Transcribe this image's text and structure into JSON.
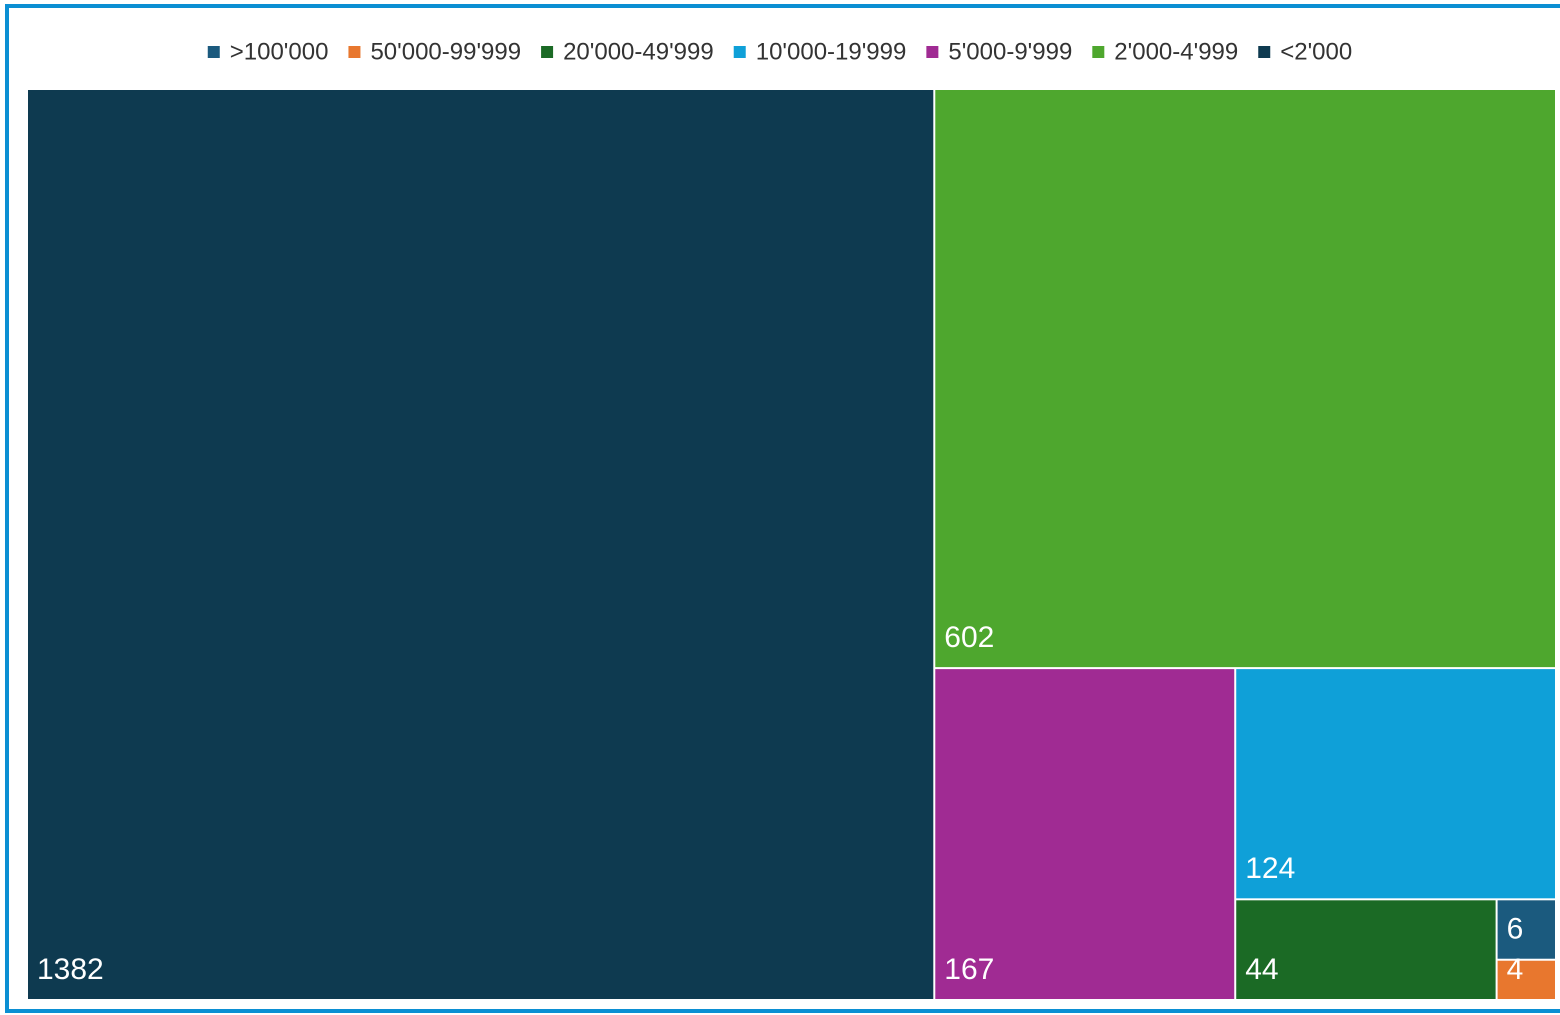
{
  "chart_data": {
    "type": "treemap",
    "categories": [
      ">100'000",
      "50'000-99'999",
      "20'000-49'999",
      "10'000-19'999",
      "5'000-9'999",
      "2'000-4'999",
      "<2'000"
    ],
    "values": [
      6,
      4,
      44,
      124,
      167,
      602,
      1382
    ],
    "colors": [
      "#1b5a7e",
      "#e8772e",
      "#1b6a25",
      "#0fa0d8",
      "#a02b93",
      "#4ea72e",
      "#0e3a50"
    ],
    "legend": "top"
  }
}
